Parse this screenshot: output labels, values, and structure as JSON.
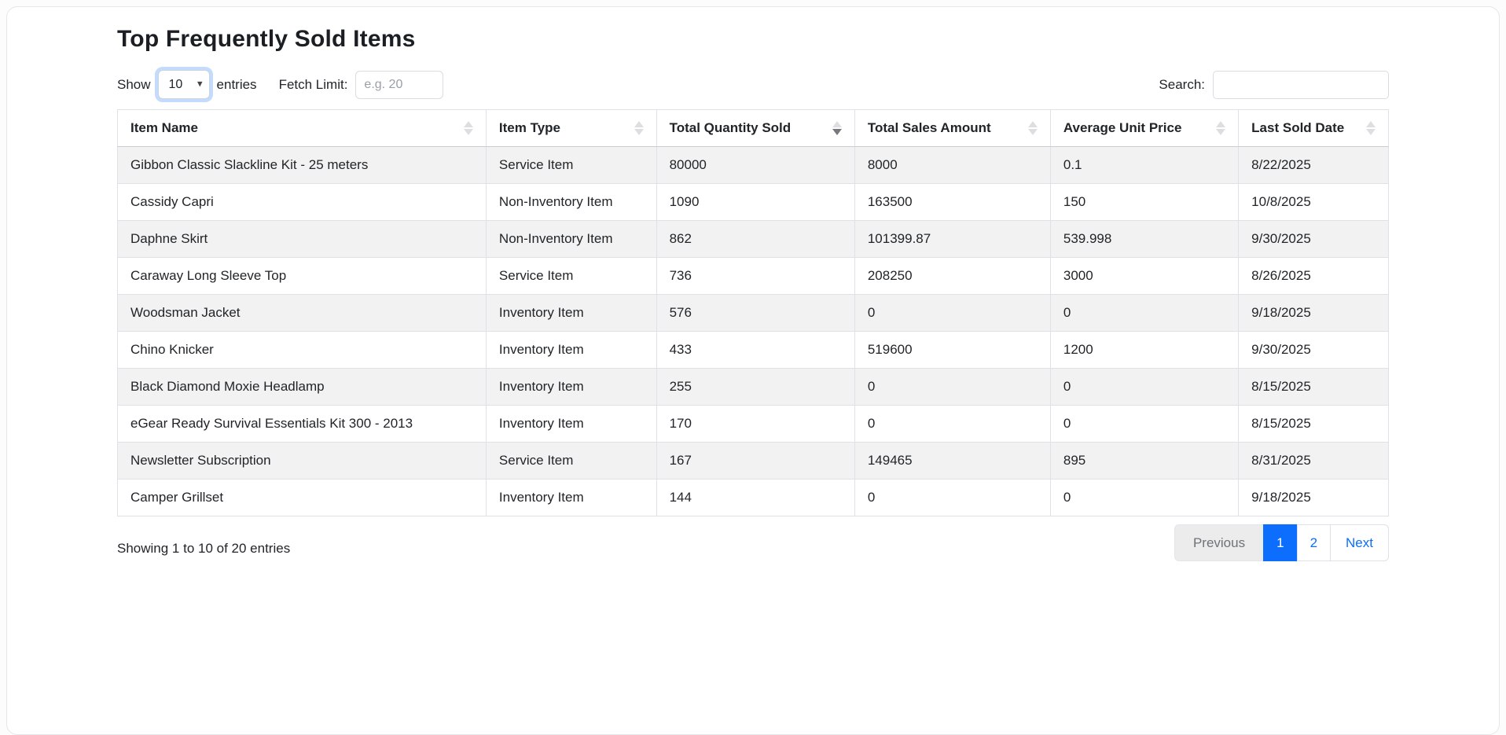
{
  "page": {
    "title": "Top Frequently Sold Items"
  },
  "controls": {
    "show_label": "Show",
    "entries_select_value": "10",
    "entries_label": "entries",
    "fetch_limit_label": "Fetch Limit:",
    "fetch_limit_placeholder": "e.g. 20",
    "fetch_limit_value": "",
    "search_label": "Search:",
    "search_value": ""
  },
  "table": {
    "columns": [
      {
        "label": "Item Name",
        "sort": "none"
      },
      {
        "label": "Item Type",
        "sort": "none"
      },
      {
        "label": "Total Quantity Sold",
        "sort": "desc"
      },
      {
        "label": "Total Sales Amount",
        "sort": "none"
      },
      {
        "label": "Average Unit Price",
        "sort": "none"
      },
      {
        "label": "Last Sold Date",
        "sort": "none"
      }
    ],
    "rows": [
      [
        "Gibbon Classic Slackline Kit - 25 meters",
        "Service Item",
        "80000",
        "8000",
        "0.1",
        "8/22/2025"
      ],
      [
        "Cassidy Capri",
        "Non-Inventory Item",
        "1090",
        "163500",
        "150",
        "10/8/2025"
      ],
      [
        "Daphne Skirt",
        "Non-Inventory Item",
        "862",
        "101399.87",
        "539.998",
        "9/30/2025"
      ],
      [
        "Caraway Long Sleeve Top",
        "Service Item",
        "736",
        "208250",
        "3000",
        "8/26/2025"
      ],
      [
        "Woodsman Jacket",
        "Inventory Item",
        "576",
        "0",
        "0",
        "9/18/2025"
      ],
      [
        "Chino Knicker",
        "Inventory Item",
        "433",
        "519600",
        "1200",
        "9/30/2025"
      ],
      [
        "Black Diamond Moxie Headlamp",
        "Inventory Item",
        "255",
        "0",
        "0",
        "8/15/2025"
      ],
      [
        "eGear Ready Survival Essentials Kit 300 - 2013",
        "Inventory Item",
        "170",
        "0",
        "0",
        "8/15/2025"
      ],
      [
        "Newsletter Subscription",
        "Service Item",
        "167",
        "149465",
        "895",
        "8/31/2025"
      ],
      [
        "Camper Grillset",
        "Inventory Item",
        "144",
        "0",
        "0",
        "9/18/2025"
      ]
    ]
  },
  "footer": {
    "info": "Showing 1 to 10 of 20 entries",
    "pagination": [
      {
        "label": "Previous",
        "state": "disabled"
      },
      {
        "label": "1",
        "state": "active"
      },
      {
        "label": "2",
        "state": "normal"
      },
      {
        "label": "Next",
        "state": "normal"
      }
    ]
  },
  "colors": {
    "accent": "#0d6efd",
    "stripe": "#f2f2f2",
    "border": "#dee2e6",
    "focus_ring": "rgba(13,110,253,0.25)",
    "disabled_text": "#6d7379"
  }
}
